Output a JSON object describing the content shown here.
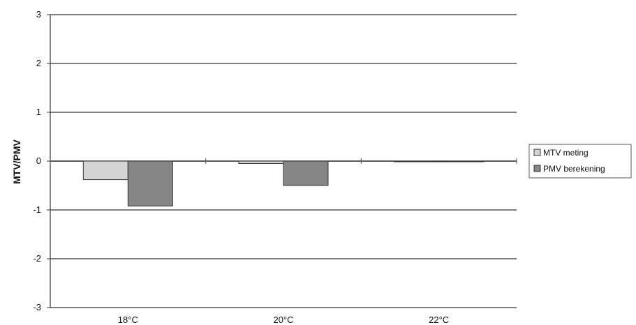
{
  "chart_data": {
    "type": "bar",
    "title": "",
    "xlabel": "",
    "ylabel": "MTV/PMV",
    "categories": [
      "18°C",
      "20°C",
      "22°C"
    ],
    "ylim": [
      -3,
      3
    ],
    "yticks": [
      3,
      2,
      1,
      0,
      -1,
      -2,
      -3
    ],
    "grid": true,
    "legend_position": "right",
    "series": [
      {
        "name": "MTV meting",
        "values": [
          -0.38,
          -0.05,
          -0.01
        ],
        "color": "#d4d4d4"
      },
      {
        "name": "PMV berekening",
        "values": [
          -0.92,
          -0.5,
          0.0
        ],
        "color": "#858585"
      }
    ]
  }
}
